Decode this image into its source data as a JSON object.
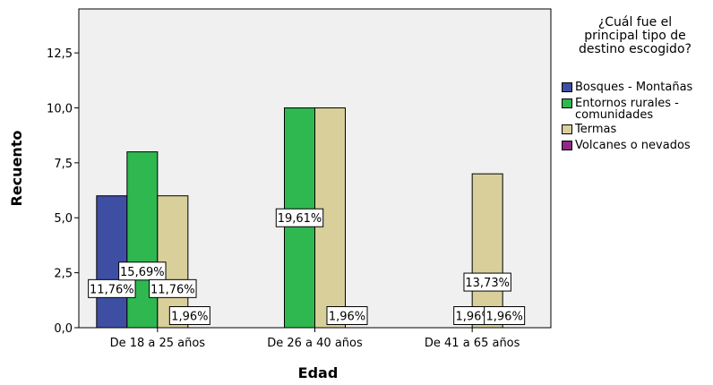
{
  "chart_data": {
    "type": "bar",
    "title": "",
    "xlabel": "Edad",
    "ylabel": "Recuento",
    "ylim": [
      0,
      14.5
    ],
    "yticks": [
      0,
      2.5,
      5,
      7.5,
      10,
      12.5
    ],
    "ytick_labels": [
      "0,0",
      "2,5",
      "5,0",
      "7,5",
      "10,0",
      "12,5"
    ],
    "categories": [
      "De 18 a 25 años",
      "De 26 a 40 años",
      "De 41 a 65 años"
    ],
    "legend_title": "¿Cuál fue el principal tipo de destino escogido?",
    "legend_title_lines": [
      "¿Cuál fue el",
      "principal tipo de",
      "destino escogido?"
    ],
    "legend_position": "right",
    "grid": false,
    "series": [
      {
        "name": "Bosques - Montañas",
        "color": "#3e4fa3",
        "values": [
          6,
          0,
          0
        ],
        "labels": [
          "11,76%",
          "",
          ""
        ]
      },
      {
        "name": "Entornos rurales - comunidades",
        "color": "#2fb84f",
        "values": [
          8,
          10,
          0
        ],
        "labels": [
          "15,69%",
          "19,61%",
          ""
        ]
      },
      {
        "name": "Termas",
        "color": "#d8cf9b",
        "values": [
          6,
          10,
          7
        ],
        "labels": [
          "11,76%",
          "",
          "13,73%"
        ]
      },
      {
        "name": "Volcanes o nevados",
        "color": "#8e2a86",
        "values": [
          0,
          0,
          0
        ],
        "labels": [
          "",
          "",
          ""
        ]
      }
    ],
    "extra_labels": [
      {
        "category": "De 18 a 25 años",
        "label": "1,96%"
      },
      {
        "category": "De 26 a 40 años",
        "label": "1,96%"
      },
      {
        "category": "De 41 a 65 años",
        "label": "1,96%"
      },
      {
        "category": "De 41 a 65 años",
        "label": "1,96%"
      }
    ]
  },
  "legend": {
    "items": [
      {
        "lines": [
          "Bosques - Montañas"
        ],
        "color": "#3e4fa3"
      },
      {
        "lines": [
          "Entornos rurales -",
          "comunidades"
        ],
        "color": "#2fb84f"
      },
      {
        "lines": [
          "Termas"
        ],
        "color": "#d8cf9b"
      },
      {
        "lines": [
          "Volcanes o nevados"
        ],
        "color": "#8e2a86"
      }
    ]
  }
}
